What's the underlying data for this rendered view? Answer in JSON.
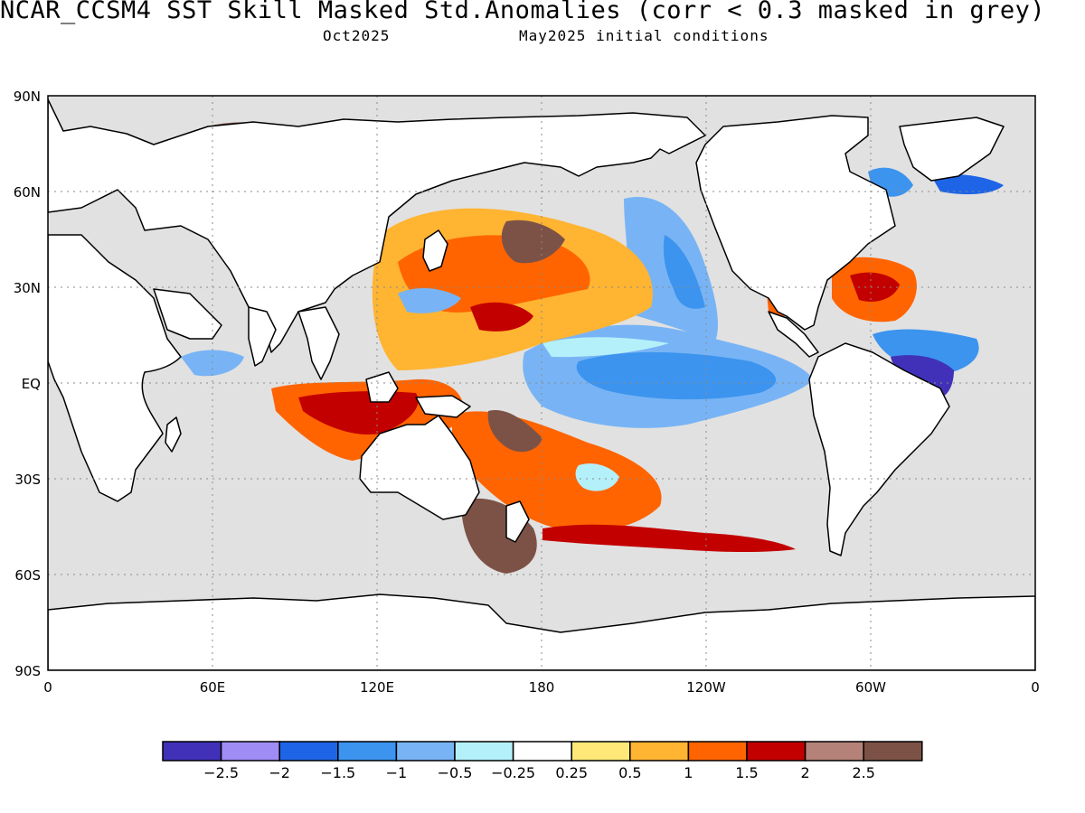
{
  "title": "NCAR_CCSM4  SST Skill Masked Std.Anomalies (corr < 0.3 masked in grey)",
  "subtitle_left": "Oct2025",
  "subtitle_right": "May2025 initial conditions",
  "map": {
    "lat_ticks": [
      "90N",
      "60N",
      "30N",
      "EQ",
      "30S",
      "60S",
      "90S"
    ],
    "lon_ticks": [
      "0",
      "60E",
      "120E",
      "180",
      "120W",
      "60W",
      "0"
    ],
    "mask_color": "#e1e1e1",
    "land_color": "#ffffff",
    "coast_color": "#000000"
  },
  "colorbar": {
    "colors": [
      "#4131b8",
      "#a08cf5",
      "#1e64e6",
      "#3c94ee",
      "#78b4f5",
      "#b4f0fa",
      "#ffffff",
      "#ffe878",
      "#ffb432",
      "#ff6400",
      "#c30000",
      "#b48278",
      "#7d5246"
    ],
    "labels": [
      "-2.5",
      "-2",
      "-1.5",
      "-1",
      "-0.5",
      "-0.25",
      "0.25",
      "0.5",
      "1",
      "1.5",
      "2",
      "2.5"
    ]
  }
}
